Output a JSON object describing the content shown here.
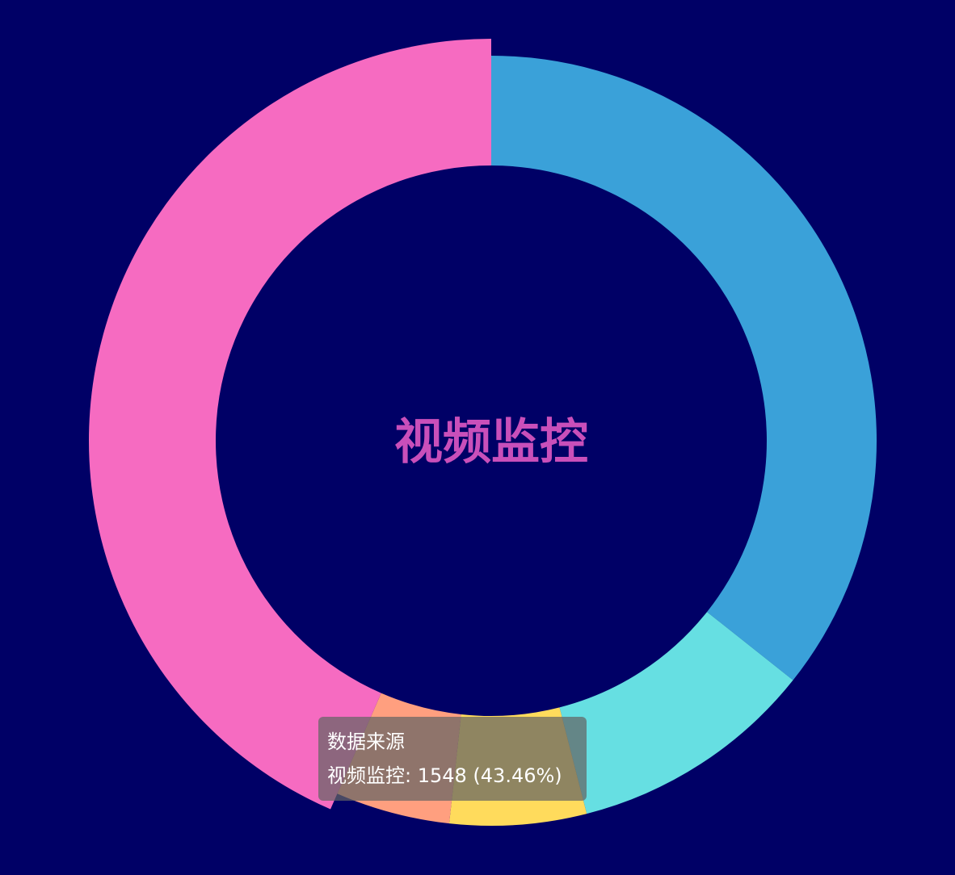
{
  "colors": {
    "background": "#000066",
    "center_text": "#c94fba",
    "tooltip_bg": "rgba(100,100,100,0.72)"
  },
  "chart_data": {
    "type": "pie",
    "variant": "donut",
    "center_text": "视频监控",
    "slices": [
      {
        "value": 1271,
        "color": "#3aa1d9",
        "highlighted": false
      },
      {
        "value": 368,
        "color": "#66dfe2",
        "highlighted": false
      },
      {
        "value": 204,
        "color": "#ffdb5c",
        "highlighted": false
      },
      {
        "value": 171,
        "color": "#ff9f7f",
        "highlighted": false
      },
      {
        "name": "视频监控",
        "value": 1548,
        "percent": "43.46%",
        "color": "#f66bc1",
        "highlighted": true
      }
    ],
    "total": 3562,
    "tooltip": {
      "title": "数据来源",
      "item": "视频监控: 1548 (43.46%)"
    }
  }
}
